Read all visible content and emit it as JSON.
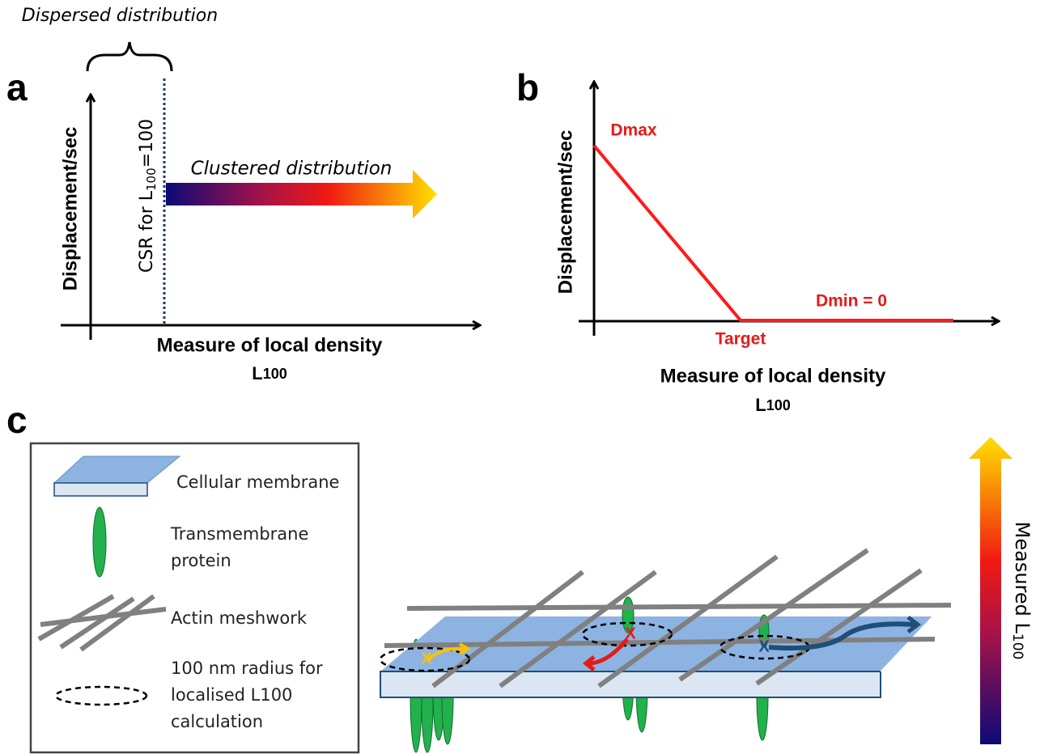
{
  "panel_a": {
    "label": "a",
    "top_note": "Dispersed distribution",
    "y_axis": "Displacement/sec",
    "csr_label": {
      "before": "CSR for L",
      "sub": "100",
      "after": "=100"
    },
    "arrow_label": "Clustered distribution",
    "x_axis": "Measure of local density",
    "x_axis_unit": {
      "main": "L",
      "sub": "100"
    }
  },
  "panel_b": {
    "label": "b",
    "y_axis": "Displacement/sec",
    "max_label": "Dmax",
    "min_label": "Dmin = 0",
    "target_label": "Target",
    "x_axis": "Measure of local density",
    "x_axis_unit": {
      "main": "L",
      "sub": "100"
    }
  },
  "panel_c": {
    "label": "c",
    "legend": [
      {
        "lines": [
          "Cellular membrane"
        ]
      },
      {
        "lines": [
          "Transmembrane",
          "protein"
        ]
      },
      {
        "lines": [
          "Actin meshwork"
        ]
      },
      {
        "lines": [
          "100 nm  radius for",
          "localised L100",
          "calculation"
        ]
      }
    ],
    "markers": [
      "X",
      "X",
      "X"
    ],
    "colorbar_label": {
      "main": "Measured L",
      "sub": "100"
    }
  }
}
